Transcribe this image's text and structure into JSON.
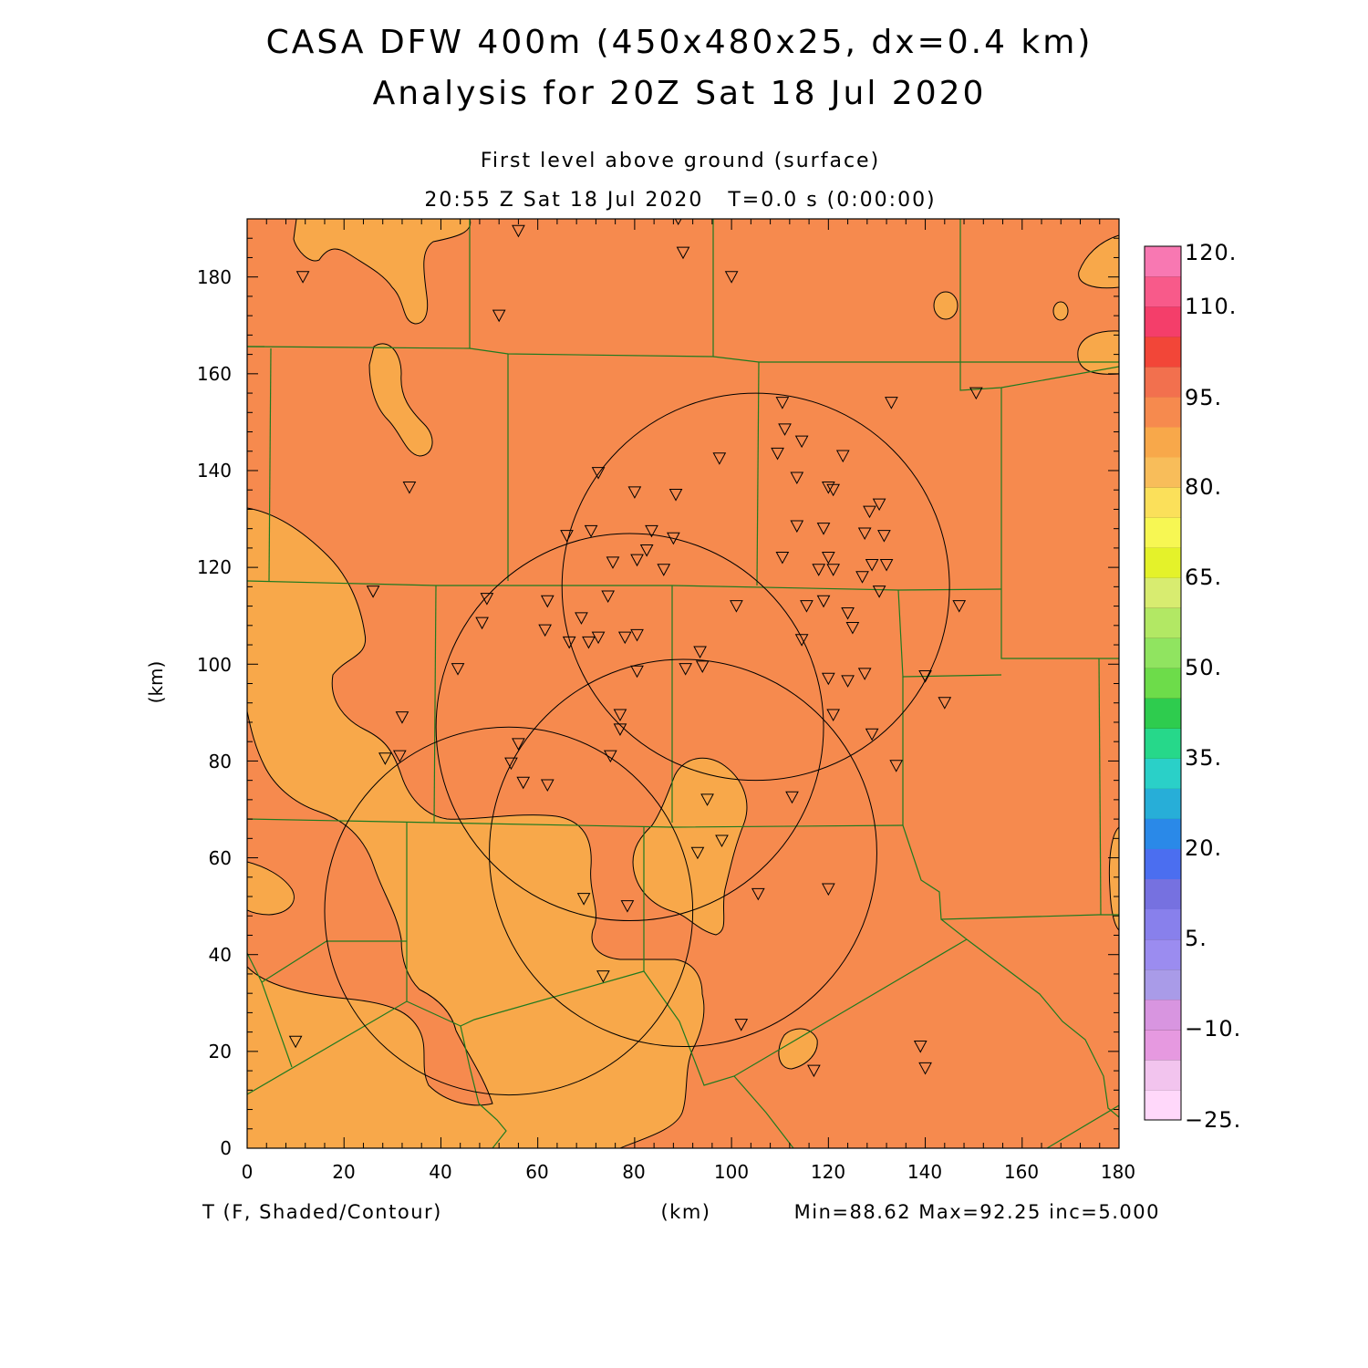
{
  "title": {
    "line1": "CASA DFW 400m (450x480x25, dx=0.4 km)",
    "line2": "Analysis for 20Z Sat 18 Jul 2020"
  },
  "subtitle": {
    "level": "First level above ground (surface)",
    "time": "20:55 Z Sat 18 Jul 2020   T=0.0 s (0:00:00)"
  },
  "axes": {
    "x_unit_label": "(km)",
    "y_unit_label": "(km)",
    "x_ticks": [
      "0",
      "20",
      "40",
      "60",
      "80",
      "100",
      "120",
      "140",
      "160",
      "180"
    ],
    "y_ticks": [
      "0",
      "20",
      "40",
      "60",
      "80",
      "100",
      "120",
      "140",
      "160",
      "180"
    ]
  },
  "footer": {
    "field": "T (F, Shaded/Contour)",
    "stats": "Min=88.62 Max=92.25 inc=5.000"
  },
  "colorbar": {
    "labels": [
      "120.",
      "110.",
      "95.",
      "80.",
      "65.",
      "50.",
      "35.",
      "20.",
      "5.",
      "−10.",
      "−25."
    ],
    "colors": [
      "#ffd8fa",
      "#f2c4ee",
      "#e699e0",
      "#d895e0",
      "#a99be8",
      "#9b8cf0",
      "#8880ec",
      "#7671e0",
      "#4b6ef0",
      "#2a89e8",
      "#27aed8",
      "#2ad0c8",
      "#26d88a",
      "#2ecc4e",
      "#6ddc4a",
      "#90e460",
      "#b2e864",
      "#d8ec70",
      "#e4f22a",
      "#f7f753",
      "#fbe05a",
      "#f8bd5a",
      "#f8a84a",
      "#f68a4e",
      "#f2704e",
      "#f24638",
      "#f43e6a",
      "#f85a8a",
      "#f878b2"
    ]
  },
  "chart_data": {
    "type": "heatmap",
    "field": "T (F)",
    "xlim": [
      0,
      180
    ],
    "ylim": [
      0,
      192
    ],
    "min": 88.62,
    "max": 92.25,
    "inc": 5.0,
    "shading": {
      "warm": "#f68a4e",
      "cool": "#f8a84a"
    },
    "radar_circles": [
      {
        "center": [
          105,
          116
        ],
        "radius": 40
      },
      {
        "center": [
          79,
          87
        ],
        "radius": 40
      },
      {
        "center": [
          90,
          61
        ],
        "radius": 40
      },
      {
        "center": [
          54,
          49
        ],
        "radius": 38
      }
    ],
    "stations": [
      [
        11.5,
        180
      ],
      [
        56,
        189.5
      ],
      [
        89,
        192
      ],
      [
        90,
        185
      ],
      [
        100,
        180
      ],
      [
        52,
        172
      ],
      [
        33.5,
        136.5
      ],
      [
        26,
        115
      ],
      [
        72.5,
        139.5
      ],
      [
        80,
        135.5
      ],
      [
        88.5,
        135
      ],
      [
        97.5,
        142.5
      ],
      [
        110.5,
        154
      ],
      [
        111,
        148.5
      ],
      [
        109.5,
        143.5
      ],
      [
        114.5,
        146
      ],
      [
        123,
        143
      ],
      [
        113.5,
        138.5
      ],
      [
        120,
        136.5
      ],
      [
        121,
        136
      ],
      [
        128.5,
        131.5
      ],
      [
        130.5,
        133
      ],
      [
        127.5,
        127
      ],
      [
        131.5,
        126.5
      ],
      [
        113.5,
        128.5
      ],
      [
        119,
        128
      ],
      [
        110.5,
        122
      ],
      [
        120,
        122
      ],
      [
        118,
        119.5
      ],
      [
        121,
        119.5
      ],
      [
        127,
        118
      ],
      [
        129,
        120.5
      ],
      [
        132,
        120.5
      ],
      [
        130.5,
        115
      ],
      [
        133,
        154
      ],
      [
        150.5,
        156
      ],
      [
        147,
        112
      ],
      [
        66,
        126.5
      ],
      [
        71,
        127.5
      ],
      [
        83.5,
        127.5
      ],
      [
        88,
        126
      ],
      [
        75.5,
        121
      ],
      [
        80.5,
        121.5
      ],
      [
        82.5,
        123.5
      ],
      [
        86,
        119.5
      ],
      [
        74.5,
        114
      ],
      [
        62,
        113
      ],
      [
        49.5,
        113.5
      ],
      [
        48.5,
        108.5
      ],
      [
        61.5,
        107
      ],
      [
        69,
        109.5
      ],
      [
        66.5,
        104.5
      ],
      [
        70.5,
        104.5
      ],
      [
        72.5,
        105.5
      ],
      [
        78,
        105.5
      ],
      [
        80.5,
        106
      ],
      [
        101,
        112
      ],
      [
        115.5,
        112
      ],
      [
        119,
        113
      ],
      [
        124,
        110.5
      ],
      [
        125,
        107.5
      ],
      [
        114.5,
        105
      ],
      [
        93.5,
        102.5
      ],
      [
        94,
        99.5
      ],
      [
        90.5,
        99
      ],
      [
        80.5,
        98.5
      ],
      [
        43.5,
        99
      ],
      [
        120,
        97
      ],
      [
        124,
        96.5
      ],
      [
        127.5,
        98
      ],
      [
        32,
        89
      ],
      [
        77,
        89.5
      ],
      [
        77,
        86.5
      ],
      [
        121,
        89.5
      ],
      [
        129,
        85.5
      ],
      [
        140,
        97.5
      ],
      [
        144,
        92
      ],
      [
        134,
        79
      ],
      [
        28.5,
        80.5
      ],
      [
        31.5,
        81
      ],
      [
        56,
        83.5
      ],
      [
        54.5,
        79.5
      ],
      [
        75,
        81
      ],
      [
        57,
        75.5
      ],
      [
        62,
        75
      ],
      [
        95,
        72
      ],
      [
        112.5,
        72.5
      ],
      [
        98,
        63.5
      ],
      [
        93,
        61
      ],
      [
        69.5,
        51.5
      ],
      [
        78.5,
        50
      ],
      [
        105.5,
        52.5
      ],
      [
        120,
        53.5
      ],
      [
        73.5,
        35.5
      ],
      [
        10,
        22
      ],
      [
        102,
        25.5
      ],
      [
        117,
        16
      ],
      [
        139,
        21
      ],
      [
        140,
        16.5
      ]
    ],
    "units": "km"
  }
}
